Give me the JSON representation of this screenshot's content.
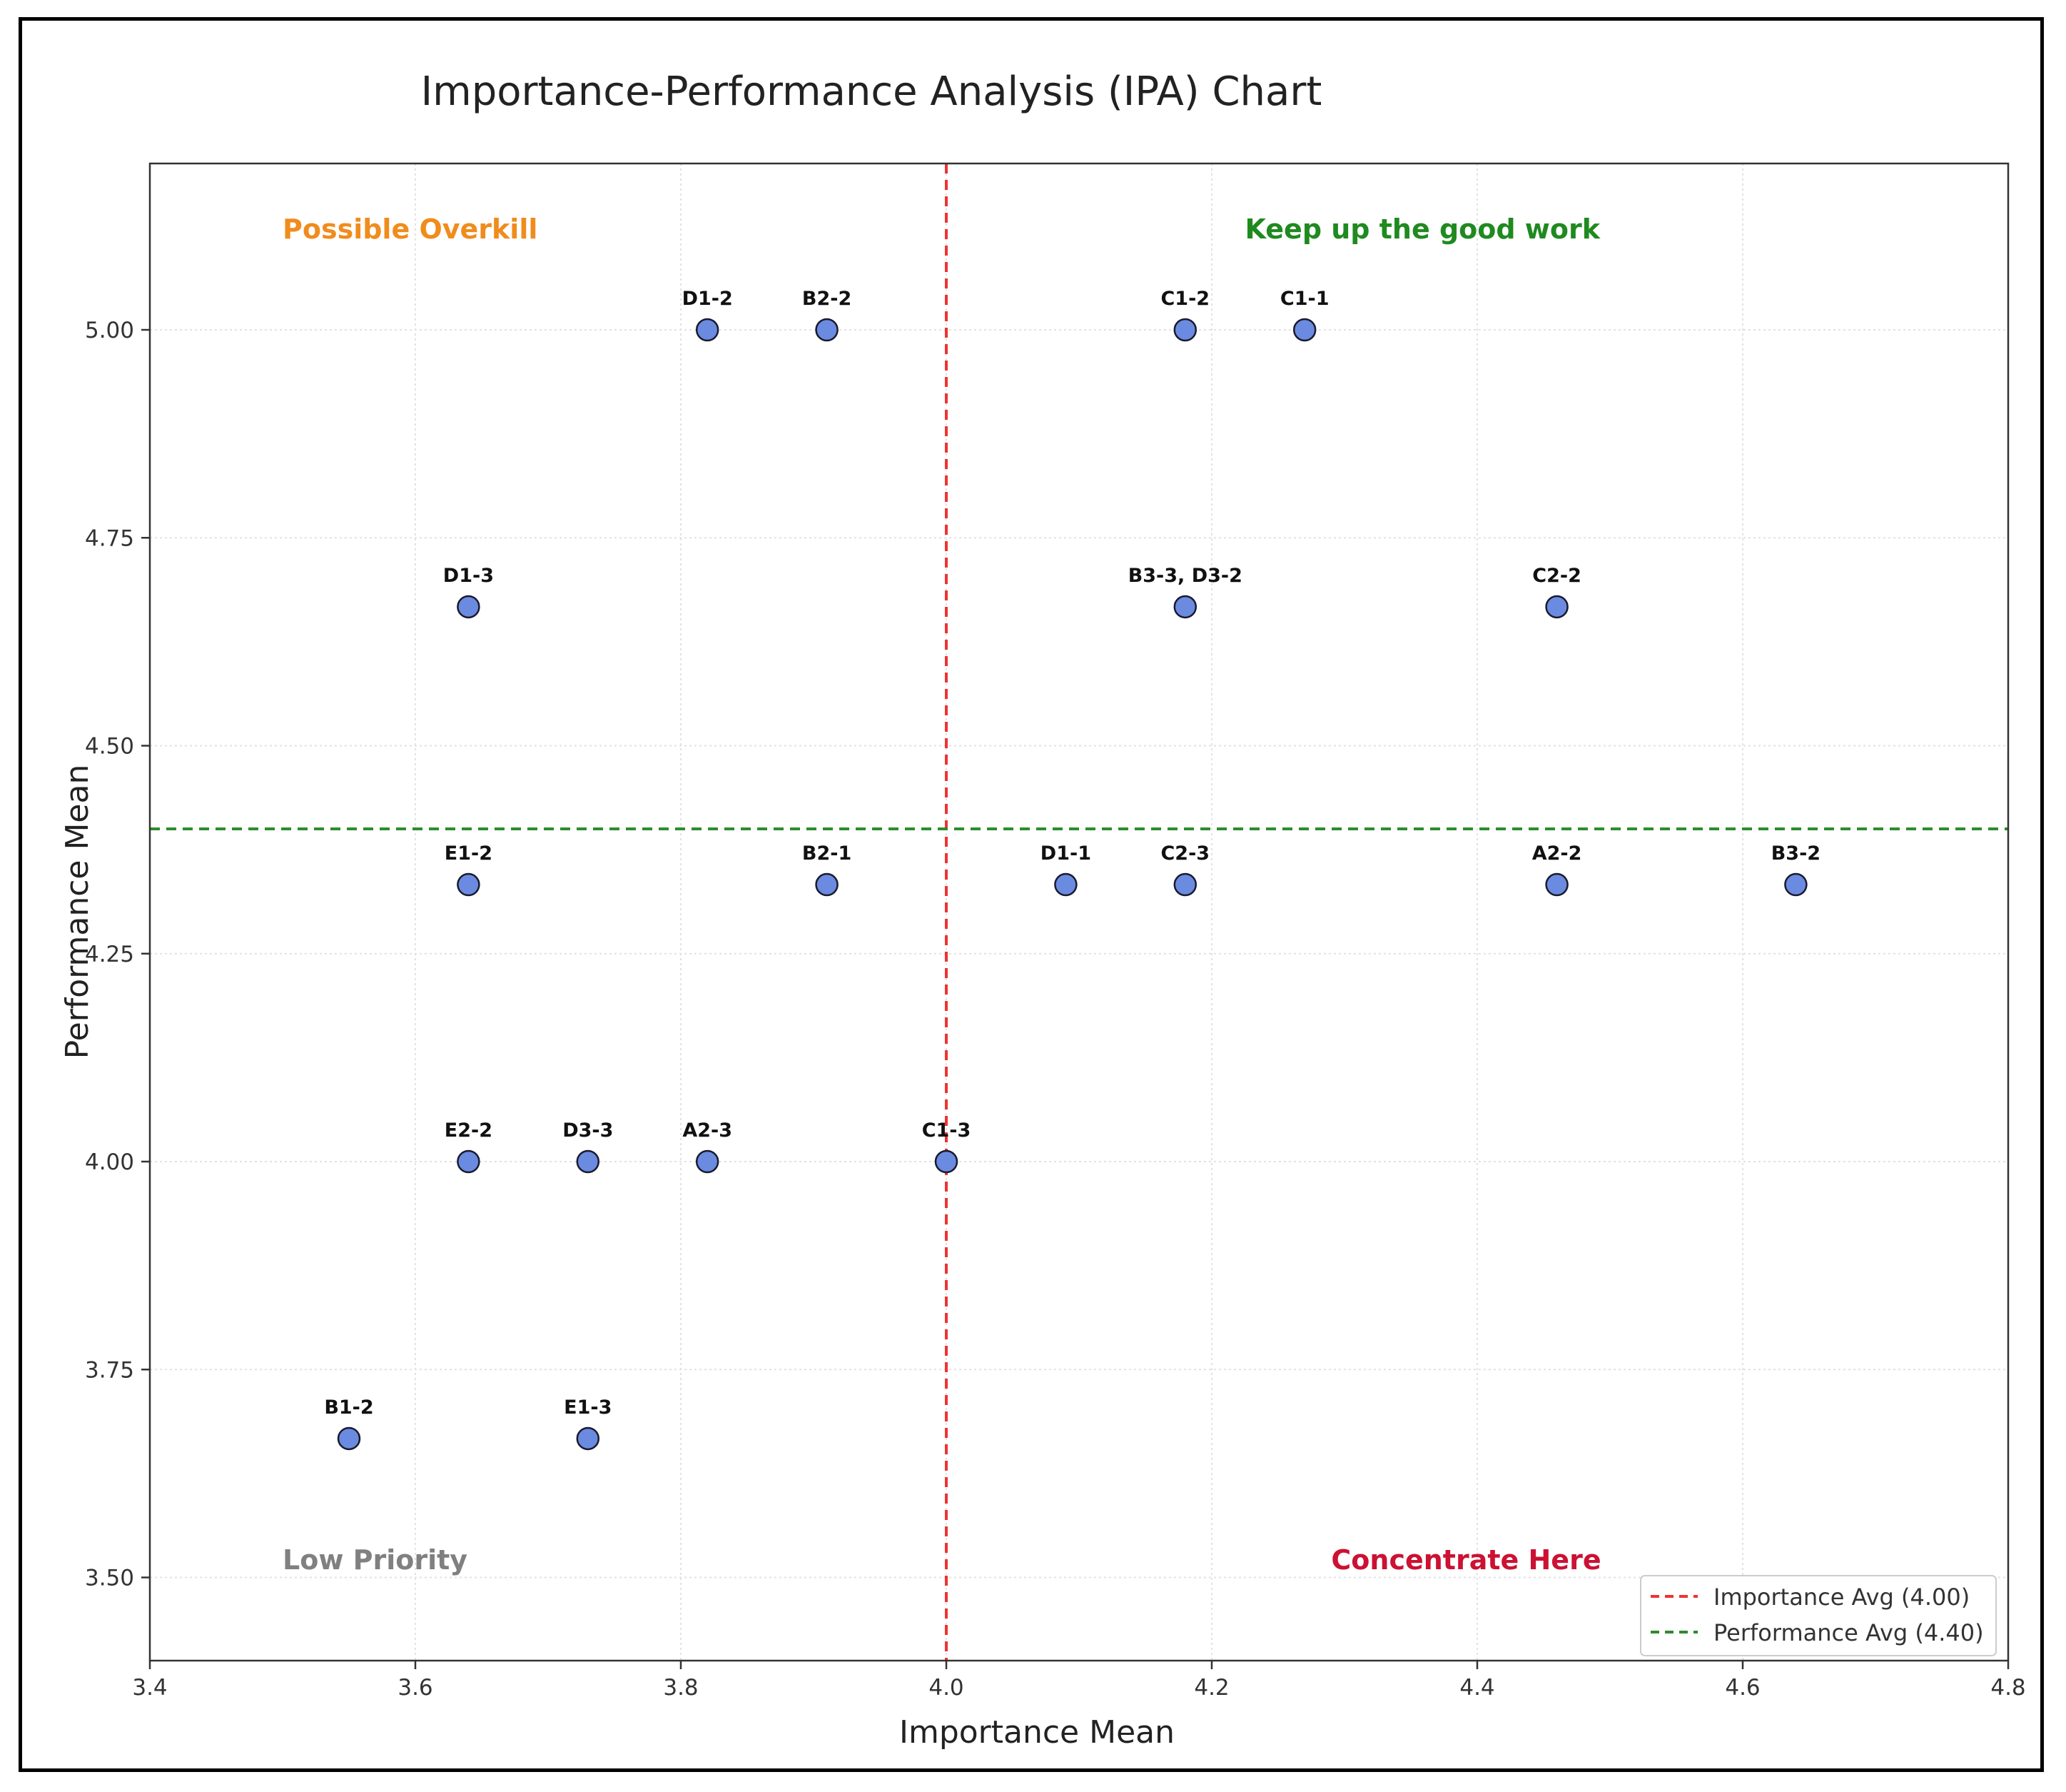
{
  "chart_data": {
    "type": "scatter",
    "title": "Importance-Performance Analysis (IPA) Chart",
    "xlabel": "Importance Mean",
    "ylabel": "Performance Mean",
    "xlim": [
      3.4,
      4.8
    ],
    "ylim": [
      3.4,
      5.2
    ],
    "x_ticks": [
      3.4,
      3.6,
      3.8,
      4.0,
      4.2,
      4.4,
      4.6,
      4.8
    ],
    "x_tick_labels": [
      "3.4",
      "3.6",
      "3.8",
      "4.0",
      "4.2",
      "4.4",
      "4.6",
      "4.8"
    ],
    "y_ticks": [
      3.5,
      3.75,
      4.0,
      4.25,
      4.5,
      4.75,
      5.0
    ],
    "y_tick_labels": [
      "3.50",
      "3.75",
      "4.00",
      "4.25",
      "4.50",
      "4.75",
      "5.00"
    ],
    "grid": true,
    "points": [
      {
        "label": "D1-2",
        "x": 3.82,
        "y": 5.0
      },
      {
        "label": "B2-2",
        "x": 3.91,
        "y": 5.0
      },
      {
        "label": "C1-2",
        "x": 4.18,
        "y": 5.0
      },
      {
        "label": "C1-1",
        "x": 4.27,
        "y": 5.0
      },
      {
        "label": "D1-3",
        "x": 3.64,
        "y": 4.667
      },
      {
        "label": "B3-3, D3-2",
        "x": 4.18,
        "y": 4.667
      },
      {
        "label": "C2-2",
        "x": 4.46,
        "y": 4.667
      },
      {
        "label": "E1-2",
        "x": 3.64,
        "y": 4.333
      },
      {
        "label": "B2-1",
        "x": 3.91,
        "y": 4.333
      },
      {
        "label": "D1-1",
        "x": 4.09,
        "y": 4.333
      },
      {
        "label": "C2-3",
        "x": 4.18,
        "y": 4.333
      },
      {
        "label": "A2-2",
        "x": 4.46,
        "y": 4.333
      },
      {
        "label": "B3-2",
        "x": 4.64,
        "y": 4.333
      },
      {
        "label": "E2-2",
        "x": 3.64,
        "y": 4.0
      },
      {
        "label": "D3-3",
        "x": 3.73,
        "y": 4.0
      },
      {
        "label": "A2-3",
        "x": 3.82,
        "y": 4.0
      },
      {
        "label": "C1-3",
        "x": 4.0,
        "y": 4.0
      },
      {
        "label": "B1-2",
        "x": 3.55,
        "y": 3.667
      },
      {
        "label": "E1-3",
        "x": 3.73,
        "y": 3.667
      }
    ],
    "reference_lines": [
      {
        "orientation": "vertical",
        "value": 4.0,
        "label": "Importance Avg (4.00)",
        "color": "#ee3333"
      },
      {
        "orientation": "horizontal",
        "value": 4.4,
        "label": "Performance Avg (4.40)",
        "color": "#2e8b2e"
      }
    ],
    "quadrant_labels": [
      {
        "text": "Possible Overkill",
        "x": 3.5,
        "y": 5.11,
        "color": "#f08c1c"
      },
      {
        "text": "Keep up the good work",
        "x": 4.225,
        "y": 5.11,
        "color": "#1f8a1f"
      },
      {
        "text": "Low Priority",
        "x": 3.5,
        "y": 3.51,
        "color": "#808080"
      },
      {
        "text": "Concentrate Here",
        "x": 4.29,
        "y": 3.51,
        "color": "#cc1133"
      }
    ],
    "legend_position": "bottom-right",
    "marker_color": "#6a8be0",
    "marker_edge": "#1a1a2e"
  }
}
